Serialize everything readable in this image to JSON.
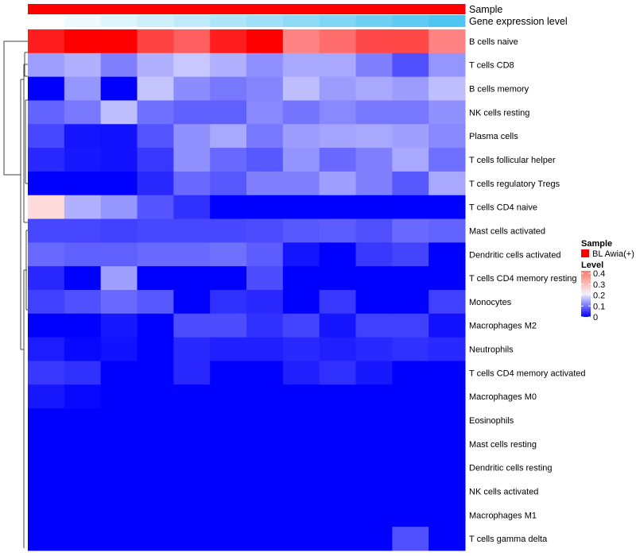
{
  "chart_data": {
    "type": "heatmap",
    "title": "",
    "rows": [
      "B cells naive",
      "T cells CD8",
      "B cells memory",
      "NK cells resting",
      "Plasma cells",
      "T cells follicular helper",
      "T cells regulatory  Tregs",
      "T cells CD4 naive",
      "Mast cells activated",
      "Dendritic cells activated",
      "T cells CD4 memory resting",
      "Monocytes",
      "Macrophages M2",
      "Neutrophils",
      "T cells CD4 memory activated",
      "Macrophages M0",
      "Eosinophils",
      "Mast cells resting",
      "Dendritic cells resting",
      "NK cells activated",
      "Macrophages M1",
      "T cells gamma delta"
    ],
    "n_columns": 12,
    "values": [
      [
        0.51,
        0.58,
        0.58,
        0.46,
        0.42,
        0.51,
        0.58,
        0.37,
        0.4,
        0.45,
        0.45,
        0.37
      ],
      [
        0.124,
        0.138,
        0.1,
        0.138,
        0.157,
        0.138,
        0.112,
        0.132,
        0.132,
        0.1,
        0.063,
        0.117
      ],
      [
        0,
        0.118,
        0,
        0.154,
        0.11,
        0.094,
        0.104,
        0.15,
        0.122,
        0.132,
        0.122,
        0.15
      ],
      [
        0.078,
        0.094,
        0.15,
        0.088,
        0.075,
        0.075,
        0.107,
        0.091,
        0.107,
        0.094,
        0.094,
        0.113
      ],
      [
        0.056,
        0.016,
        0.013,
        0.067,
        0.113,
        0.132,
        0.094,
        0.122,
        0.129,
        0.132,
        0.125,
        0.107
      ],
      [
        0.031,
        0.019,
        0.013,
        0.044,
        0.113,
        0.082,
        0.069,
        0.116,
        0.082,
        0.1,
        0.132,
        0.088
      ],
      [
        0,
        0,
        0,
        0.031,
        0.082,
        0.069,
        0.1,
        0.1,
        0.125,
        0.1,
        0.069,
        0.132
      ],
      [
        0.25,
        0.138,
        0.118,
        0.067,
        0.038,
        0,
        0,
        0,
        0,
        0,
        0,
        0
      ],
      [
        0.056,
        0.056,
        0.05,
        0.056,
        0.056,
        0.056,
        0.06,
        0.069,
        0.072,
        0.063,
        0.082,
        0.078
      ],
      [
        0.082,
        0.075,
        0.075,
        0.082,
        0.082,
        0.088,
        0.072,
        0.016,
        0,
        0.044,
        0.053,
        0
      ],
      [
        0.031,
        0,
        0.125,
        0,
        0,
        0,
        0.06,
        0,
        0,
        0,
        0,
        0
      ],
      [
        0.05,
        0.063,
        0.082,
        0.069,
        0,
        0.038,
        0.031,
        0,
        0.044,
        0,
        0,
        0.05
      ],
      [
        0,
        0,
        0.019,
        0,
        0.06,
        0.06,
        0.038,
        0.053,
        0.016,
        0.05,
        0.05,
        0.013
      ],
      [
        0.022,
        0.006,
        0.013,
        0,
        0.031,
        0.025,
        0.025,
        0.031,
        0.025,
        0.031,
        0.038,
        0.031
      ],
      [
        0.044,
        0.038,
        0,
        0,
        0.031,
        0,
        0,
        0.025,
        0.038,
        0.019,
        0,
        0
      ],
      [
        0.019,
        0.006,
        0,
        0,
        0,
        0,
        0,
        0,
        0,
        0,
        0,
        0
      ],
      [
        0,
        0,
        0,
        0,
        0,
        0,
        0,
        0,
        0,
        0,
        0,
        0
      ],
      [
        0,
        0,
        0,
        0,
        0,
        0,
        0,
        0,
        0,
        0,
        0,
        0
      ],
      [
        0,
        0,
        0,
        0,
        0,
        0,
        0,
        0,
        0,
        0,
        0,
        0
      ],
      [
        0,
        0,
        0,
        0,
        0,
        0,
        0,
        0,
        0,
        0,
        0,
        0
      ],
      [
        0,
        0,
        0,
        0,
        0,
        0,
        0,
        0,
        0,
        0,
        0,
        0
      ],
      [
        0,
        0,
        0,
        0,
        0,
        0,
        0,
        0,
        0,
        0,
        0.063,
        0
      ]
    ],
    "color_scale": {
      "low": "#0000FF",
      "mid": "#FFFFFF",
      "high": "#FF0000",
      "mid_value": 0.2
    },
    "annotations": {
      "sample": {
        "label": "Sample",
        "color": "#FF0000"
      },
      "gene_expression": {
        "label": "Gene expression level",
        "low_color": "#FFFFFF",
        "high_color": "#4FC6F2"
      }
    },
    "legend": {
      "sample_title": "Sample",
      "sample_entry": "BL Awia(+)",
      "level_title": "Level",
      "level_ticks": [
        "0.4",
        "0.3",
        "0.2",
        "0.1",
        "0"
      ],
      "level_tick_values": [
        0.4,
        0.3,
        0.2,
        0.1,
        0
      ],
      "placement": "right"
    }
  }
}
